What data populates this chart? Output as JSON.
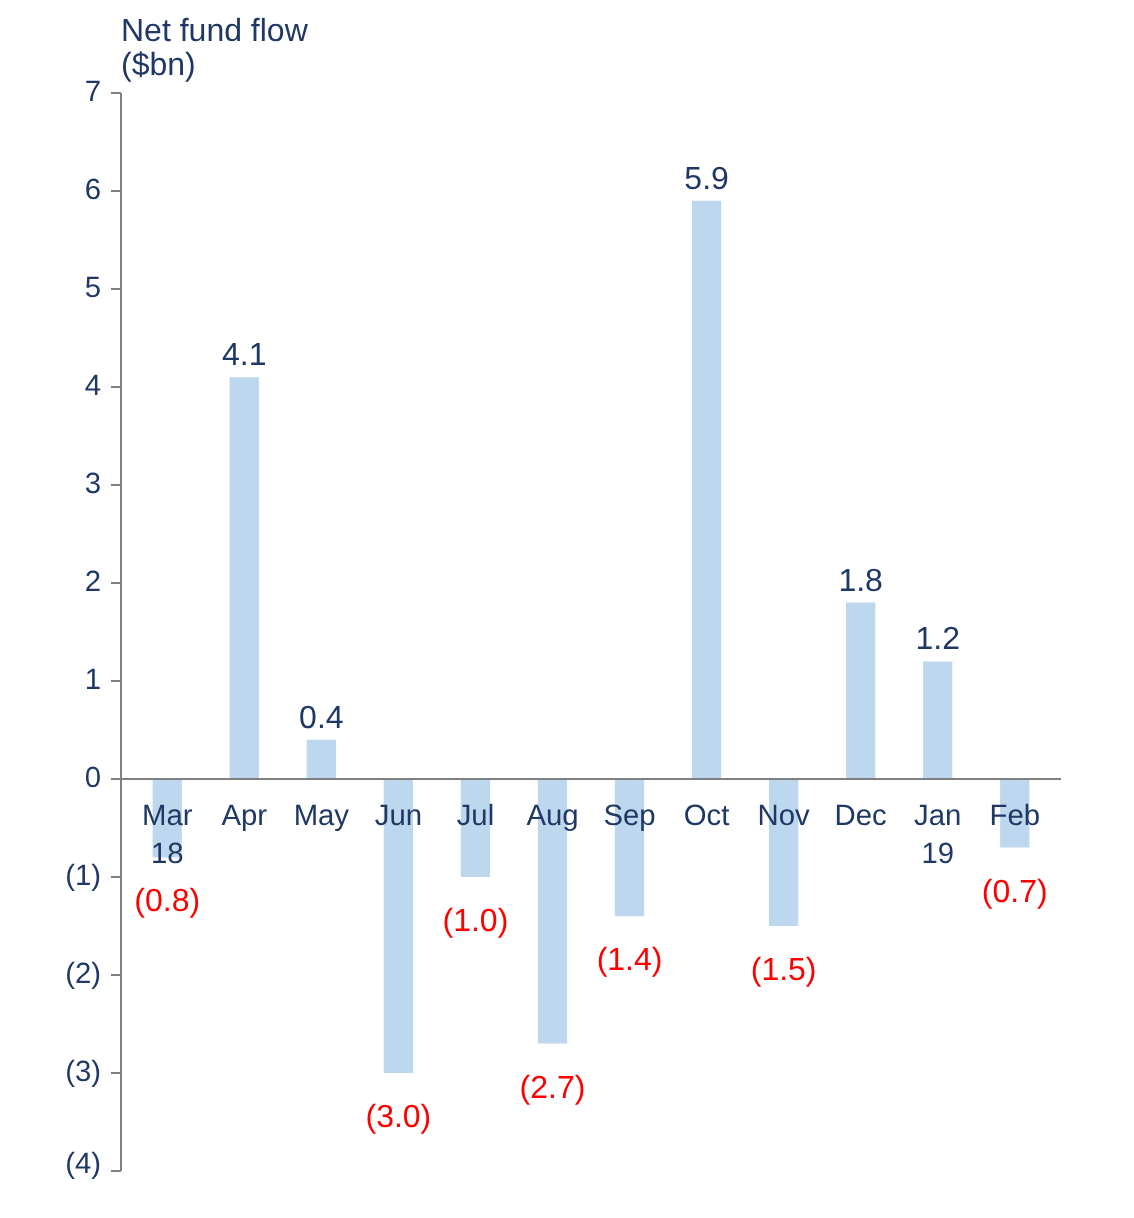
{
  "chart_data": {
    "type": "bar",
    "ylabel": "Net fund flow\n($bn)",
    "categories": [
      "Mar\n18",
      "Apr",
      "May",
      "Jun",
      "Jul",
      "Aug",
      "Sep",
      "Oct",
      "Nov",
      "Dec",
      "Jan\n19",
      "Feb"
    ],
    "values": [
      -0.8,
      4.1,
      0.4,
      -3.0,
      -1.0,
      -2.7,
      -1.4,
      5.9,
      -1.5,
      1.8,
      1.2,
      -0.7
    ],
    "value_labels": [
      "(0.8)",
      "4.1",
      "0.4",
      "(3.0)",
      "(1.0)",
      "(2.7)",
      "(1.4)",
      "5.9",
      "(1.5)",
      "1.8",
      "1.2",
      "(0.7)"
    ],
    "color": "#bdd7ee",
    "ylim": [
      -4,
      7
    ],
    "yticks": [
      {
        "value": -4,
        "label": "(4)"
      },
      {
        "value": -3,
        "label": "(3)"
      },
      {
        "value": -2,
        "label": "(2)"
      },
      {
        "value": -1,
        "label": "(1)"
      },
      0,
      1,
      2,
      3,
      4,
      5,
      6,
      7
    ],
    "grid": false
  }
}
